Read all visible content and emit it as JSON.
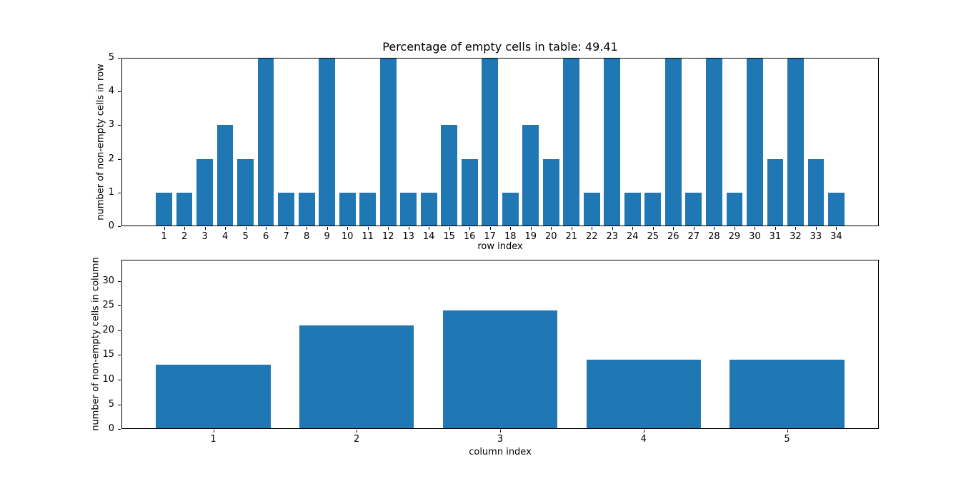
{
  "figure": {
    "background": "#ffffff",
    "text_color": "#000000",
    "axis_color": "#000000"
  },
  "chart_data": [
    {
      "type": "bar",
      "title": "Percentage of empty cells in table: 49.41",
      "xlabel": "row index",
      "ylabel": "number of non-empty cells in row",
      "categories": [
        1,
        2,
        3,
        4,
        5,
        6,
        7,
        8,
        9,
        10,
        11,
        12,
        13,
        14,
        15,
        16,
        17,
        18,
        19,
        20,
        21,
        22,
        23,
        24,
        25,
        26,
        27,
        28,
        29,
        30,
        31,
        32,
        33,
        34
      ],
      "values": [
        1,
        1,
        2,
        3,
        2,
        5,
        1,
        1,
        5,
        1,
        1,
        5,
        1,
        1,
        3,
        2,
        5,
        1,
        3,
        2,
        5,
        1,
        5,
        1,
        1,
        5,
        1,
        5,
        1,
        5,
        2,
        5,
        2,
        1
      ],
      "bar_color": "#1f77b4",
      "bar_width": 0.8,
      "xlim": [
        -1.09,
        36.09
      ],
      "ylim": [
        0,
        5
      ],
      "yticks": [
        0,
        1,
        2,
        3,
        4,
        5
      ],
      "grid": false,
      "legend": null
    },
    {
      "type": "bar",
      "title": "",
      "xlabel": "column index",
      "ylabel": "number of non-empty cells in column",
      "categories": [
        1,
        2,
        3,
        4,
        5
      ],
      "values": [
        13,
        21,
        24,
        14,
        14
      ],
      "bar_color": "#1f77b4",
      "bar_width": 0.8,
      "xlim": [
        0.36,
        5.64
      ],
      "ylim": [
        0,
        34.3
      ],
      "yticks": [
        0,
        5,
        10,
        15,
        20,
        25,
        30
      ],
      "grid": false,
      "legend": null
    }
  ]
}
